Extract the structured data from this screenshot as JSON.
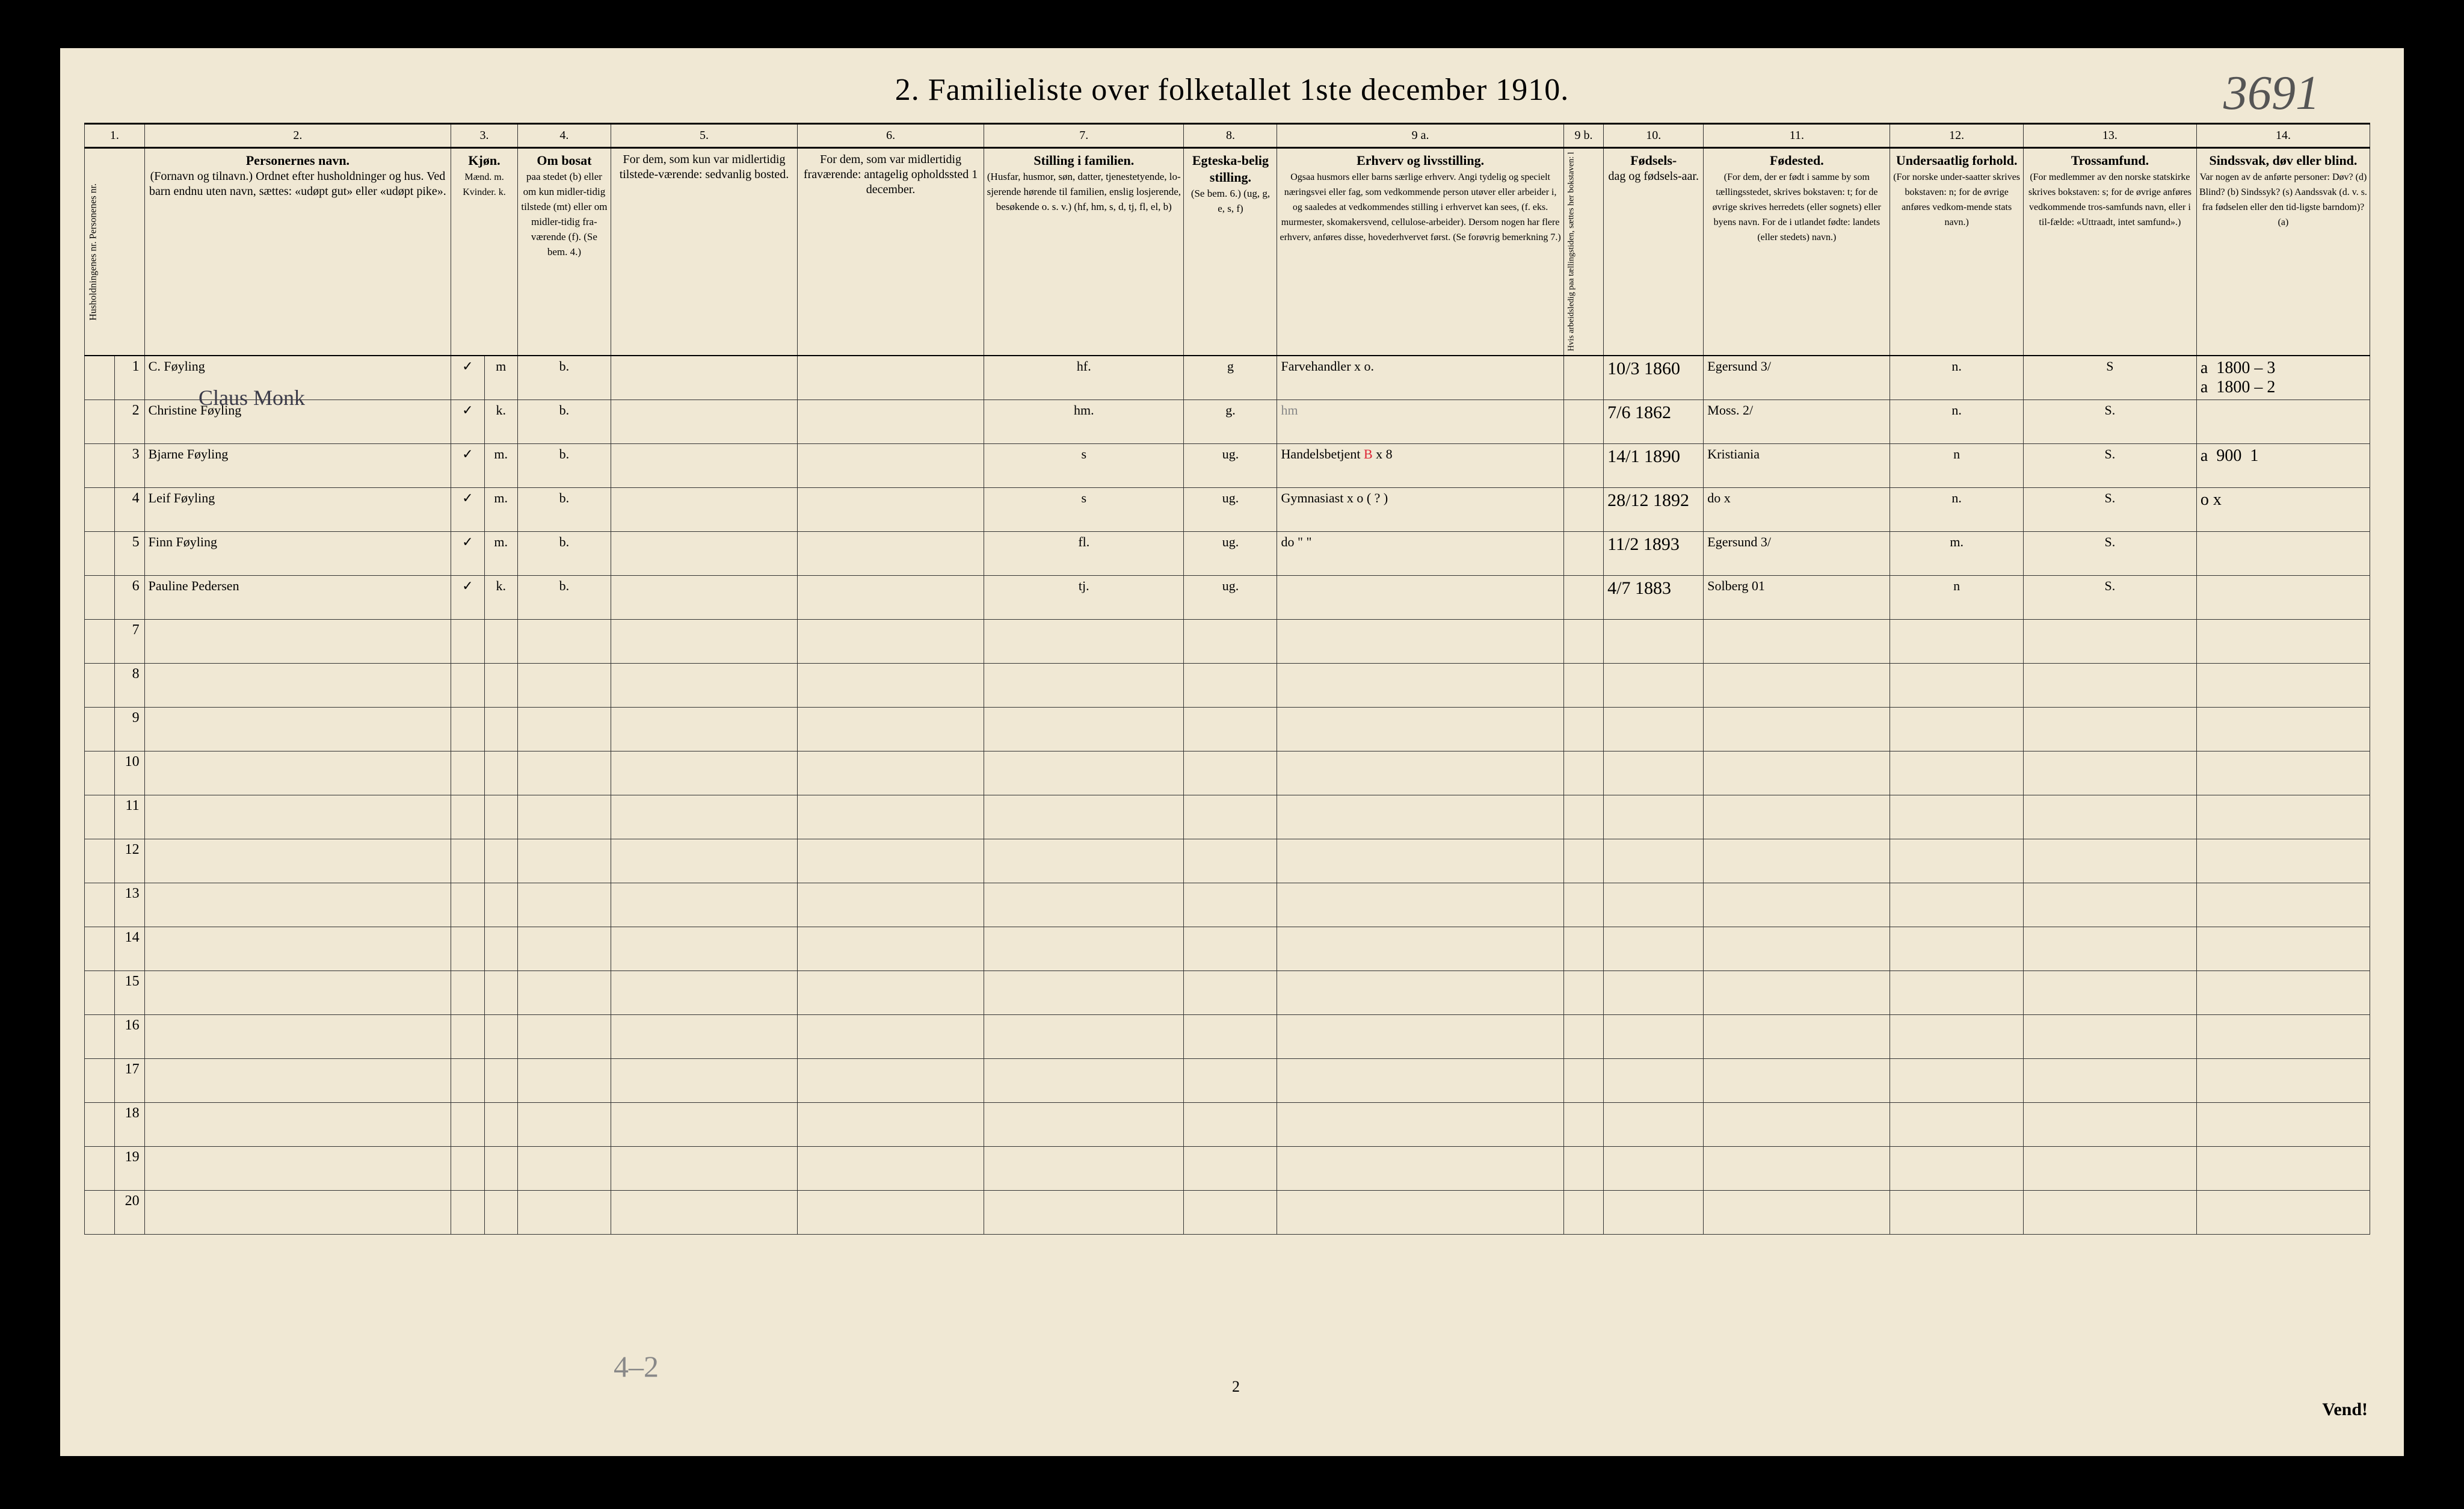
{
  "title": "2.  Familieliste over folketallet 1ste december 1910.",
  "handwritten_top_right": "3691",
  "page_number": "2",
  "turn_over": "Vend!",
  "bottom_pencil_note": "4–2",
  "above_row1_text": "Claus Monk",
  "colors": {
    "paper": "#f0e8d4",
    "ink": "#000000",
    "handwriting": "#3a3a48",
    "blue_check": "#2a3a8f",
    "red_ink": "#d22030",
    "pencil": "#888888",
    "background": "#000000"
  },
  "column_numbers": [
    "1.",
    "2.",
    "3.",
    "4.",
    "5.",
    "6.",
    "7.",
    "8.",
    "9 a.",
    "9 b.",
    "10.",
    "11.",
    "12.",
    "13.",
    "14."
  ],
  "headers": {
    "c1": "Husholdningenes nr.\nPersonenes nr.",
    "c2_bold": "Personernes navn.",
    "c2": "(Fornavn og tilnavn.)\nOrdnet efter husholdninger og hus.\nVed barn endnu uten navn, sættes: «udøpt gut» eller «udøpt pike».",
    "c3_bold": "Kjøn.",
    "c3": "Mænd. m.\nKvinder. k.",
    "c4_bold": "Om bosat",
    "c4": "paa stedet (b) eller om kun midler-tidig tilstede (mt) eller om midler-tidig fra-værende (f). (Se bem. 4.)",
    "c5": "For dem, som kun var midlertidig tilstede-værende:\nsedvanlig bosted.",
    "c6": "For dem, som var midlertidig fraværende:\nantagelig opholdssted 1 december.",
    "c7_bold": "Stilling i familien.",
    "c7": "(Husfar, husmor, søn, datter, tjenestetyende, lo-sjerende hørende til familien, enslig losjerende, besøkende o. s. v.)\n(hf, hm, s, d, tj, fl, el, b)",
    "c8_bold": "Egteska-belig stilling.",
    "c8": "(Se bem. 6.)\n(ug, g, e, s, f)",
    "c9a_bold": "Erhverv og livsstilling.",
    "c9a": "Ogsaa husmors eller barns særlige erhverv.\nAngi tydelig og specielt næringsvei eller fag, som vedkommende person utøver eller arbeider i, og saaledes at vedkommendes stilling i erhvervet kan sees, (f. eks. murmester, skomakersvend, cellulose-arbeider). Dersom nogen har flere erhverv, anføres disse, hovederhvervet først.\n(Se forøvrig bemerkning 7.)",
    "c9b": "Hvis arbeidsledig paa tællingstiden, sættes her bokstaven: l",
    "c10_bold": "Fødsels-",
    "c10": "dag og fødsels-aar.",
    "c11_bold": "Fødested.",
    "c11": "(For dem, der er født i samme by som tællingsstedet, skrives bokstaven: t; for de øvrige skrives herredets (eller sognets) eller byens navn. For de i utlandet fødte: landets (eller stedets) navn.)",
    "c12_bold": "Undersaatlig forhold.",
    "c12": "(For norske under-saatter skrives bokstaven: n; for de øvrige anføres vedkom-mende stats navn.)",
    "c13_bold": "Trossamfund.",
    "c13": "(For medlemmer av den norske statskirke skrives bokstaven: s; for de øvrige anføres vedkommende tros-samfunds navn, eller i til-fælde: «Uttraadt, intet samfund».)",
    "c14_bold": "Sindssvak, døv eller blind.",
    "c14": "Var nogen av de anførte personer:\nDøv? (d)\nBlind? (b)\nSindssyk? (s)\nAandssvak (d. v. s. fra fødselen eller den tid-ligste barndom)? (a)"
  },
  "rows": [
    {
      "n": "1",
      "name": "C. Føyling",
      "chk": "✓",
      "mk": "m",
      "res": "b.",
      "fam": "hf.",
      "civ": "g",
      "occ": "Farvehandler   x o.",
      "dob": "10/3 1860",
      "bplace": "Egersund  3/",
      "nat": "n.",
      "rel": "S",
      "c14": "a  1800 – 3\na  1800 – 2"
    },
    {
      "n": "2",
      "name": "Christine Føyling",
      "chk": "✓",
      "mk": "k.",
      "res": "b.",
      "fam": "hm.",
      "civ": "g.",
      "occ": "hm",
      "dob": "7/6 1862",
      "bplace": "Moss.  2/",
      "nat": "n.",
      "rel": "S.",
      "c14": ""
    },
    {
      "n": "3",
      "name": "Bjarne Føyling",
      "chk": "✓",
      "mk": "m.",
      "res": "b.",
      "fam": "s",
      "civ": "ug.",
      "occ": "Handelsbetjent  B  x 8",
      "dob": "14/1 1890",
      "bplace": "Kristiania",
      "nat": "n",
      "rel": "S.",
      "c14": "a  900  1"
    },
    {
      "n": "4",
      "name": "Leif Føyling",
      "chk": "✓",
      "mk": "m.",
      "res": "b.",
      "fam": "s",
      "civ": "ug.",
      "occ": "Gymnasiast   x o ( ? )",
      "dob": "28/12 1892",
      "bplace": "do      x",
      "nat": "n.",
      "rel": "S.",
      "c14": "o x"
    },
    {
      "n": "5",
      "name": "Finn Føyling",
      "chk": "✓",
      "mk": "m.",
      "res": "b.",
      "fam": "fl.",
      "civ": "ug.",
      "occ": "do          \"  \"",
      "dob": "11/2 1893",
      "bplace": "Egersund 3/",
      "nat": "m.",
      "rel": "S.",
      "c14": ""
    },
    {
      "n": "6",
      "name": "Pauline Pedersen",
      "chk": "✓",
      "mk": "k.",
      "res": "b.",
      "fam": "tj.",
      "civ": "ug.",
      "occ": "",
      "dob": "4/7 1883",
      "bplace": "Solberg 01",
      "nat": "n",
      "rel": "S.",
      "c14": ""
    }
  ],
  "empty_rows": [
    "7",
    "8",
    "9",
    "10",
    "11",
    "12",
    "13",
    "14",
    "15",
    "16",
    "17",
    "18",
    "19",
    "20"
  ]
}
